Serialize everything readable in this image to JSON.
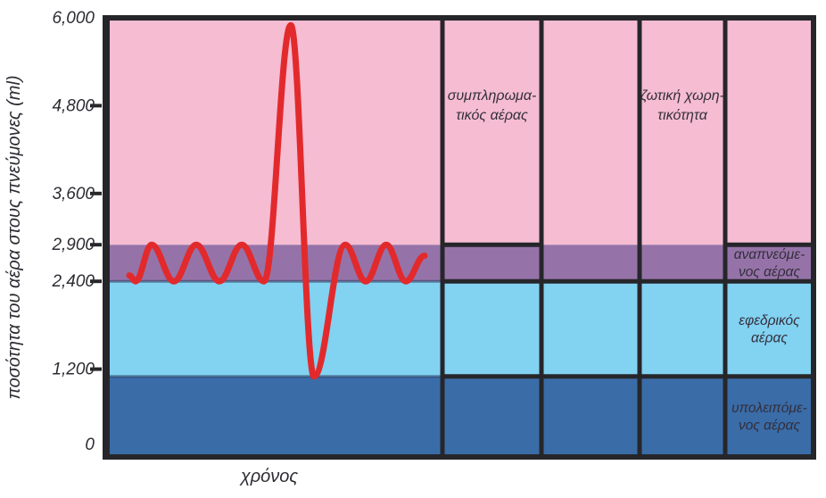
{
  "chart_data": {
    "type": "line",
    "title": "",
    "xlabel": "χρόνος",
    "ylabel": "ποσότητα του αέρα στους πνεύμονες (ml)",
    "ylim": [
      0,
      6000
    ],
    "grid": false,
    "yticks": [
      {
        "value": 6000,
        "label": "6,000"
      },
      {
        "value": 4800,
        "label": "4,800"
      },
      {
        "value": 3600,
        "label": "3,600"
      },
      {
        "value": 2900,
        "label": "2,900"
      },
      {
        "value": 2400,
        "label": "2,400"
      },
      {
        "value": 1200,
        "label": "1,200"
      },
      {
        "value": 0,
        "label": "0"
      }
    ],
    "bands": [
      {
        "id": "residual-air",
        "label_lines": [
          "υπολειπόμε-",
          "νος αέρας"
        ],
        "from": 0,
        "to": 1100,
        "color": "#3a6ca8"
      },
      {
        "id": "reserve-air",
        "label_lines": [
          "εφεδρικός",
          "αέρας"
        ],
        "from": 1100,
        "to": 2400,
        "color": "#82d2f2"
      },
      {
        "id": "tidal-air",
        "label_lines": [
          "αναπνεόμε-",
          "νος αέρας"
        ],
        "from": 2400,
        "to": 2900,
        "color": "#9573a8"
      },
      {
        "id": "supplemental-air",
        "label_lines": [],
        "from": 2900,
        "to": 6000,
        "color": "#f5bcd2"
      }
    ],
    "annotations": [
      {
        "id": "supplemental-air-box",
        "label_lines": [
          "συμπληρωμα-",
          "τικός αέρας"
        ],
        "value_from": 2900,
        "value_to": 6000
      },
      {
        "id": "vital-capacity-box",
        "label_lines": [
          "ζωτική χωρη-",
          "τικότητα"
        ],
        "value_from": 1100,
        "value_to": 6000
      }
    ],
    "series": [
      {
        "name": "breathing-curve",
        "color": "#e22a2c",
        "summary": {
          "tidal_min_ml": 2400,
          "tidal_max_ml": 2900,
          "max_inhalation_ml": 5900,
          "max_exhalation_ml": 1100
        },
        "points": [
          [
            145,
            2480
          ],
          [
            152,
            2400
          ],
          [
            170,
            2900
          ],
          [
            195,
            2400
          ],
          [
            220,
            2900
          ],
          [
            246,
            2400
          ],
          [
            271,
            2900
          ],
          [
            296,
            2400
          ],
          [
            326,
            5900
          ],
          [
            352,
            1100
          ],
          [
            387,
            2900
          ],
          [
            410,
            2400
          ],
          [
            433,
            2900
          ],
          [
            455,
            2400
          ],
          [
            476,
            2750
          ]
        ]
      }
    ],
    "colors": {
      "border": "#26262a",
      "soft_edge": "#2c3a5c",
      "text": "#2f2b33",
      "background": "#ffffff"
    }
  }
}
